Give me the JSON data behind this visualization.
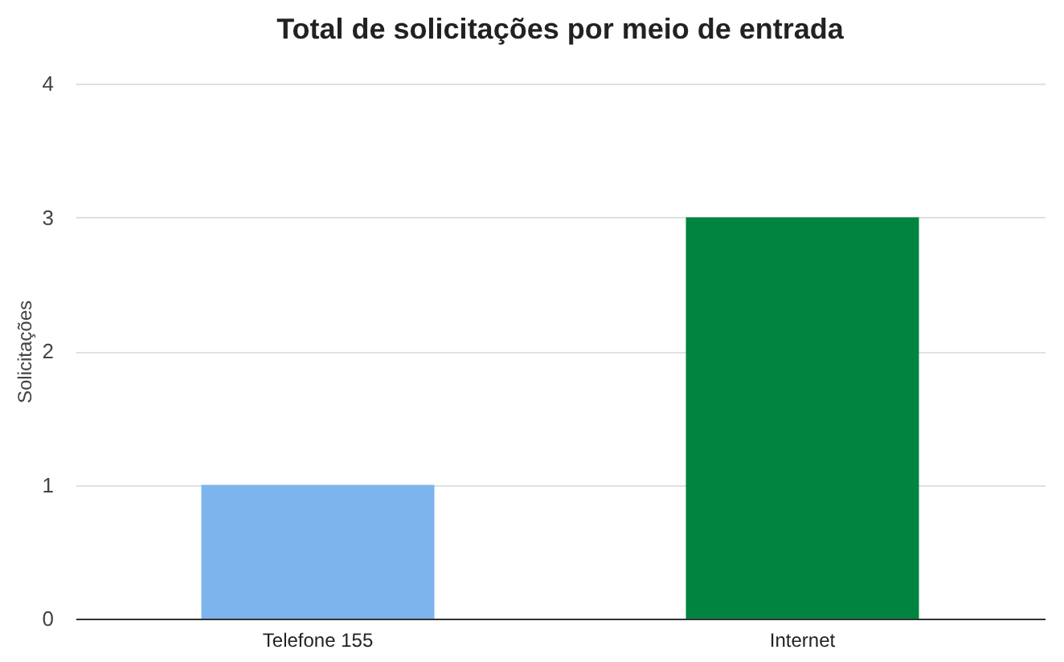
{
  "chart_data": {
    "type": "bar",
    "title": "Total de solicitações por meio de entrada",
    "ylabel": "Solicitações",
    "categories": [
      "Telefone 155",
      "Internet"
    ],
    "values": [
      1,
      3
    ],
    "colors": [
      "#7cb4ec",
      "#00843f"
    ],
    "ylim": [
      0,
      4
    ],
    "yticks": [
      0,
      1,
      2,
      3,
      4
    ],
    "grid": "y"
  }
}
